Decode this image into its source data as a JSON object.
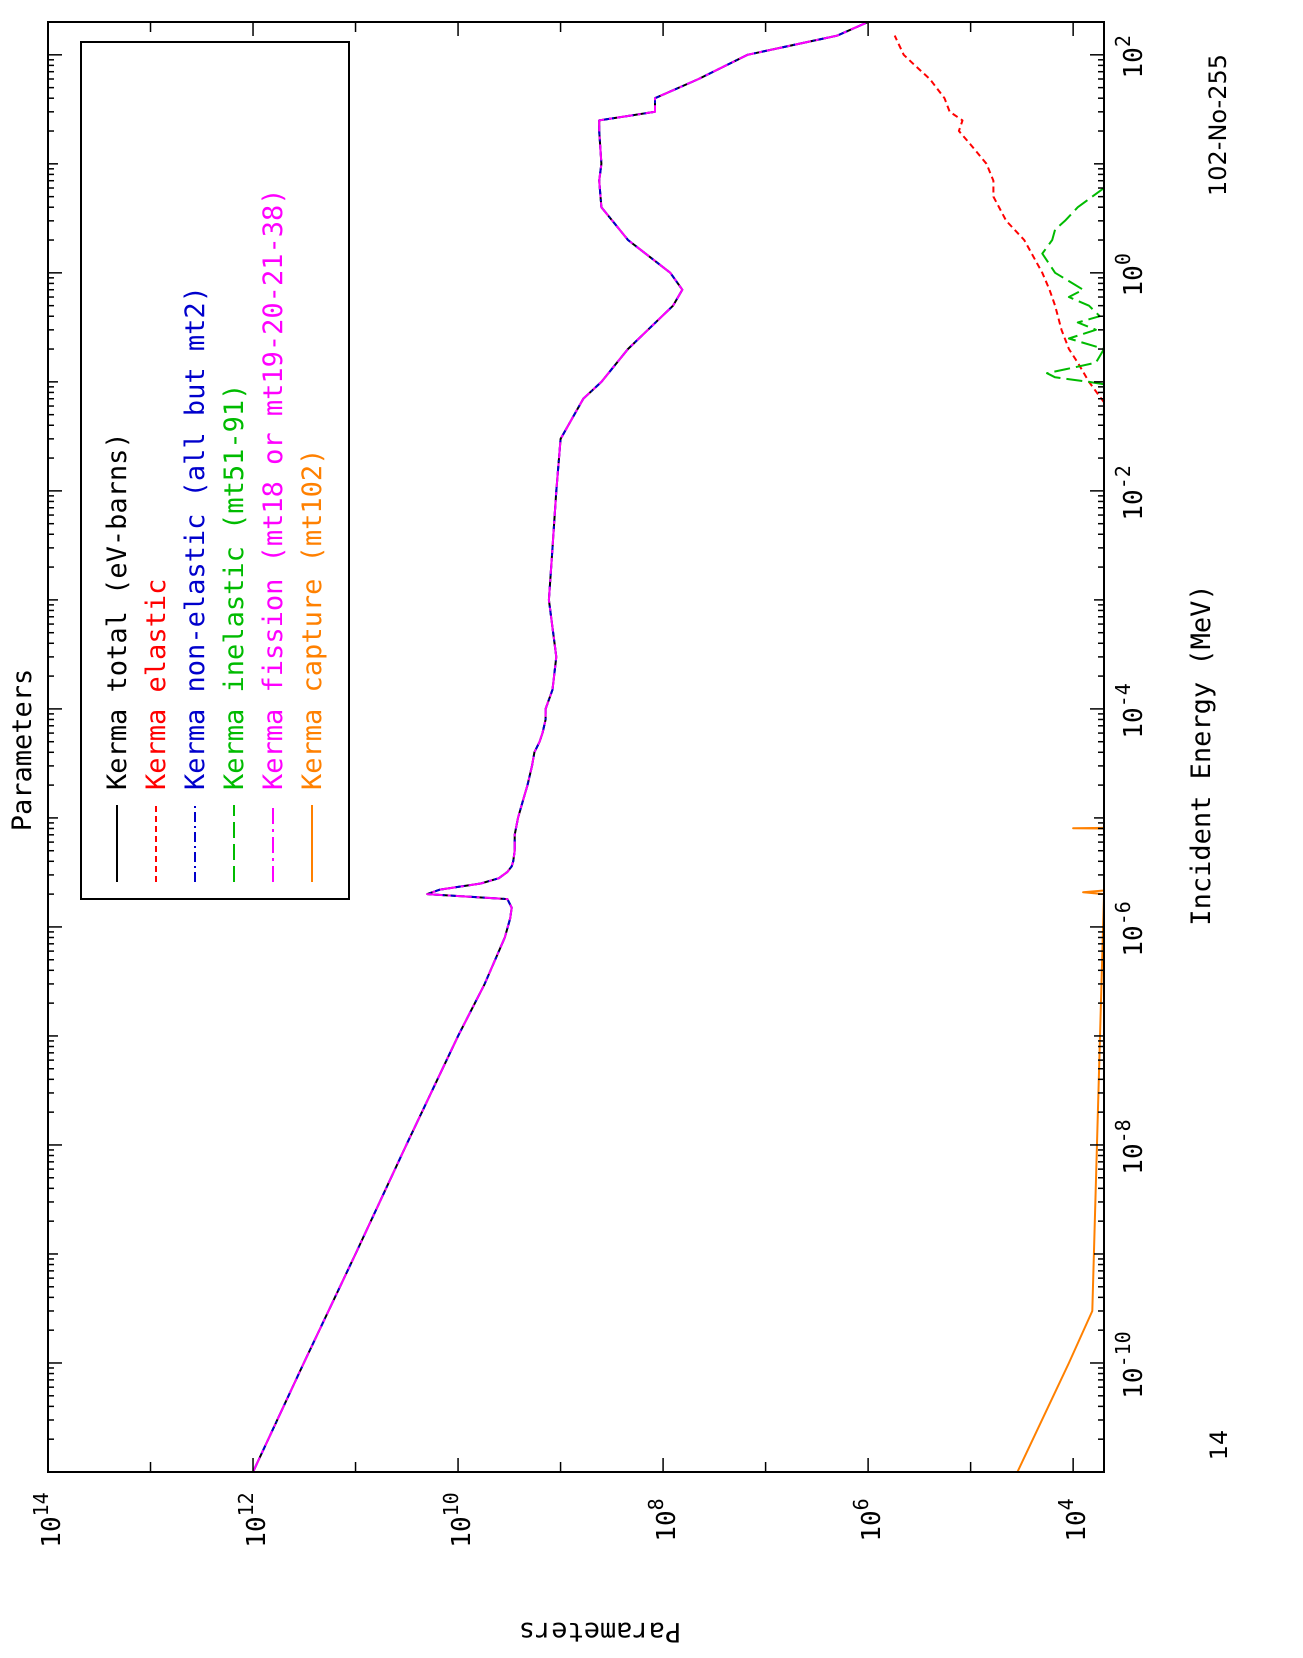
{
  "chart_data": {
    "type": "line",
    "orientation": "rotated-90-clockwise",
    "title": "Parameters",
    "xlabel": "Incident Energy (MeV)",
    "ylabel": "Parameters",
    "x_scale": "log",
    "y_scale": "log",
    "xlim": [
      1e-11,
      200
    ],
    "ylim": [
      5000,
      100000000000000.0
    ],
    "x_ticks": [
      "10^-10",
      "10^-8",
      "10^-6",
      "10^-4",
      "10^-2",
      "10^0",
      "10^2"
    ],
    "y_ticks": [
      "10^4",
      "10^6",
      "10^8",
      "10^10",
      "10^12",
      "10^14"
    ],
    "nuclide_label": "102-No-255",
    "corner_label": "14",
    "legend": {
      "placement": "bottom-left",
      "entries": [
        {
          "prefix": "Kerma",
          "name": "total",
          "suffix": "(eV-barns)",
          "color": "#000000",
          "dash": "solid"
        },
        {
          "prefix": "Kerma",
          "name": "elastic",
          "suffix": "",
          "color": "#ff0000",
          "dash": "short-dash"
        },
        {
          "prefix": "Kerma",
          "name": "non-elastic",
          "suffix": "(all but mt2)",
          "color": "#0000cc",
          "dash": "dash-dot"
        },
        {
          "prefix": "Kerma",
          "name": "inelastic",
          "suffix": "(mt51-91)",
          "color": "#00bb00",
          "dash": "long-dash"
        },
        {
          "prefix": "Kerma",
          "name": "fission",
          "suffix": "(mt18 or mt19-20-21-38)",
          "color": "#ff00ff",
          "dash": "long-dash-dot"
        },
        {
          "prefix": "Kerma",
          "name": "capture",
          "suffix": "(mt102)",
          "color": "#ff8000",
          "dash": "solid"
        }
      ]
    },
    "series": [
      {
        "name": "total",
        "x": [
          1e-11,
          1e-10,
          1e-09,
          1e-08,
          1e-07,
          3e-07,
          6e-07,
          8e-07,
          1.2e-06,
          1.5e-06,
          1.8e-06,
          2e-06,
          2.2e-06,
          2.5e-06,
          2.8e-06,
          3.2e-06,
          3.6e-06,
          4e-06,
          5e-06,
          7e-06,
          1e-05,
          1.5e-05,
          2e-05,
          3e-05,
          4e-05,
          5e-05,
          6e-05,
          8e-05,
          0.0001,
          0.00015,
          0.0003,
          0.001,
          0.003,
          0.01,
          0.03,
          0.07,
          0.1,
          0.2,
          0.5,
          0.7,
          1.0,
          2.0,
          4.0,
          7.0,
          10.0,
          20.0,
          25.0,
          30.0,
          40.0,
          60.0,
          100.0,
          150.0,
          200.0
        ],
        "y": [
          1000000000000.0,
          320000000000.0,
          100000000000.0,
          32000000000.0,
          10000000000.0,
          5500000000.0,
          4000000000.0,
          3500000000.0,
          3100000000.0,
          3000000000.0,
          3300000000.0,
          20000000000.0,
          15000000000.0,
          6000000000.0,
          4000000000.0,
          3300000000.0,
          3000000000.0,
          2900000000.0,
          2800000000.0,
          2800000000.0,
          2600000000.0,
          2300000000.0,
          2100000000.0,
          1900000000.0,
          1800000000.0,
          1600000000.0,
          1500000000.0,
          1400000000.0,
          1400000000.0,
          1200000000.0,
          1100000000.0,
          1300000000.0,
          1200000000.0,
          1100000000.0,
          1000000000.0,
          600000000.0,
          400000000.0,
          220000000.0,
          80000000.0,
          65000000.0,
          85000000.0,
          220000000.0,
          400000000.0,
          420000000.0,
          400000000.0,
          420000000.0,
          420000000.0,
          120000000.0,
          120000000.0,
          45000000.0,
          15000000.0,
          2000000.0,
          1000000.0
        ]
      },
      {
        "name": "elastic",
        "x": [
          0.065,
          0.1,
          0.15,
          0.2,
          0.3,
          0.5,
          0.7,
          1,
          2,
          3,
          5,
          7,
          10,
          15,
          20,
          25,
          30,
          40,
          60,
          80,
          100,
          150
        ],
        "y": [
          5000,
          7000,
          9000,
          11000.0,
          13000.0,
          15000.0,
          17000.0,
          20000.0,
          30000.0,
          45000.0,
          60000.0,
          60000.0,
          70000.0,
          100000.0,
          130000.0,
          120000.0,
          160000.0,
          180000.0,
          250000.0,
          350000.0,
          450000.0,
          550000.0
        ]
      },
      {
        "name": "inelastic",
        "x": [
          0.095,
          0.1,
          0.11,
          0.12,
          0.13,
          0.15,
          0.2,
          0.25,
          0.3,
          0.35,
          0.4,
          0.5,
          0.6,
          0.7,
          1,
          1.5,
          2,
          2.5,
          3,
          4,
          5,
          6
        ],
        "y": [
          5000,
          7000,
          15000.0,
          18000.0,
          12000.0,
          6000,
          5000,
          11000.0,
          6000,
          9000,
          5500,
          7000,
          11000.0,
          8000,
          15000.0,
          20000.0,
          16000.0,
          15000.0,
          12000.0,
          9000,
          6500,
          5000
        ]
      },
      {
        "name": "capture",
        "x": [
          1e-11,
          1e-10,
          3e-10,
          2e-06,
          2.08e-06,
          2.16e-06,
          8e-06,
          8.05e-06,
          8.1e-06
        ],
        "y": [
          35000.0,
          11000.0,
          6500,
          5000,
          8000,
          5000,
          5000,
          10000.0,
          5000
        ]
      }
    ]
  }
}
